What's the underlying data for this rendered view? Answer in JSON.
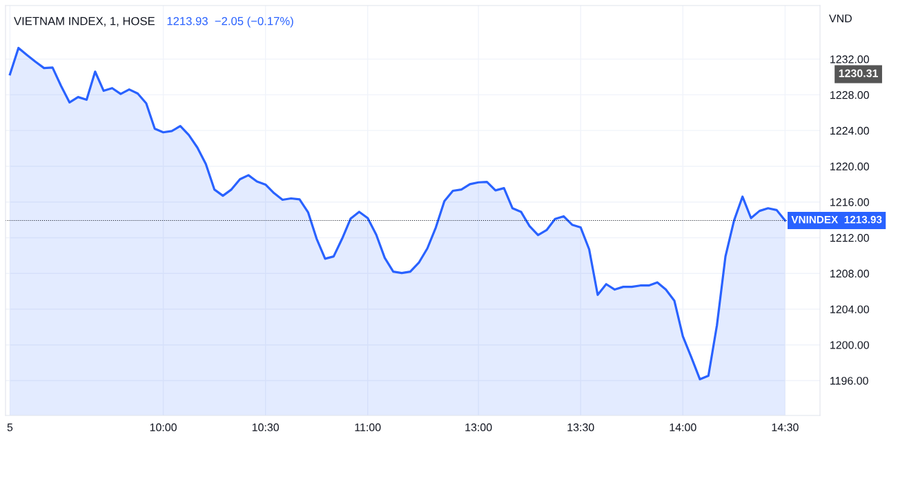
{
  "chart_data": {
    "type": "area",
    "title": "VIETNAM INDEX, 1, HOSE",
    "subtitle": "1213.93  −2.05 (−0.17%)",
    "ylabel": "VND",
    "categories": [
      "5",
      null,
      null,
      null,
      null,
      null,
      null,
      null,
      null,
      null,
      null,
      null,
      null,
      null,
      null,
      null,
      null,
      null,
      "10:00",
      null,
      null,
      null,
      null,
      null,
      null,
      null,
      null,
      null,
      null,
      null,
      "10:30",
      null,
      null,
      null,
      null,
      null,
      null,
      null,
      null,
      null,
      null,
      null,
      "11:00",
      null,
      null,
      null,
      null,
      null,
      null,
      null,
      null,
      null,
      null,
      null,
      null,
      "13:00",
      null,
      null,
      null,
      null,
      null,
      null,
      null,
      null,
      null,
      null,
      null,
      "13:30",
      null,
      null,
      null,
      null,
      null,
      null,
      null,
      null,
      null,
      null,
      null,
      "14:00",
      null,
      null,
      null,
      null,
      null,
      null,
      null,
      null,
      null,
      null,
      null,
      "14:30"
    ],
    "series": [
      {
        "color": "#2962ff",
        "values": [
          1230.3,
          1233.25,
          1232.45,
          1231.7,
          1231.0,
          1231.05,
          1229.0,
          1227.15,
          1227.75,
          1227.45,
          1230.6,
          1228.45,
          1228.75,
          1228.1,
          1228.6,
          1228.15,
          1227.05,
          1224.2,
          1223.8,
          1223.95,
          1224.5,
          1223.5,
          1222.1,
          1220.25,
          1217.4,
          1216.7,
          1217.4,
          1218.55,
          1219.0,
          1218.3,
          1217.95,
          1217.0,
          1216.25,
          1216.4,
          1216.3,
          1214.85,
          1211.9,
          1209.65,
          1209.9,
          1211.9,
          1214.15,
          1214.9,
          1214.2,
          1212.35,
          1209.75,
          1208.2,
          1208.05,
          1208.2,
          1209.2,
          1210.8,
          1213.15,
          1216.1,
          1217.25,
          1217.4,
          1218.0,
          1218.2,
          1218.25,
          1217.3,
          1217.55,
          1215.3,
          1214.9,
          1213.3,
          1212.3,
          1212.85,
          1214.1,
          1214.4,
          1213.45,
          1213.15,
          1210.7,
          1205.6,
          1206.8,
          1206.2,
          1206.5,
          1206.5,
          1206.65,
          1206.65,
          1207.0,
          1206.2,
          1204.95,
          1200.95,
          1198.6,
          1196.15,
          1196.55,
          1202.2,
          1209.9,
          1213.9,
          1216.6,
          1214.2,
          1215.0,
          1215.3,
          1215.1,
          1213.93
        ]
      }
    ],
    "ylim": [
      1192.1,
      1238.0
    ],
    "yticks": [
      {
        "value": 1196,
        "label": "1196.00"
      },
      {
        "value": 1200,
        "label": "1200.00"
      },
      {
        "value": 1204,
        "label": "1204.00"
      },
      {
        "value": 1208,
        "label": "1208.00"
      },
      {
        "value": 1212,
        "label": "1212.00"
      },
      {
        "value": 1216,
        "label": "1216.00"
      },
      {
        "value": 1220,
        "label": "1220.00"
      },
      {
        "value": 1224,
        "label": "1224.00"
      },
      {
        "value": 1228,
        "label": "1228.00"
      },
      {
        "value": 1232,
        "label": "1232.00"
      }
    ],
    "grid": true,
    "ref_lines": [
      {
        "axis": "y",
        "value": 1213.93,
        "label": "VNINDEX  1213.93",
        "color": "#131722",
        "line_style": "dotted"
      }
    ],
    "annotations": [
      "1230.31"
    ]
  }
}
